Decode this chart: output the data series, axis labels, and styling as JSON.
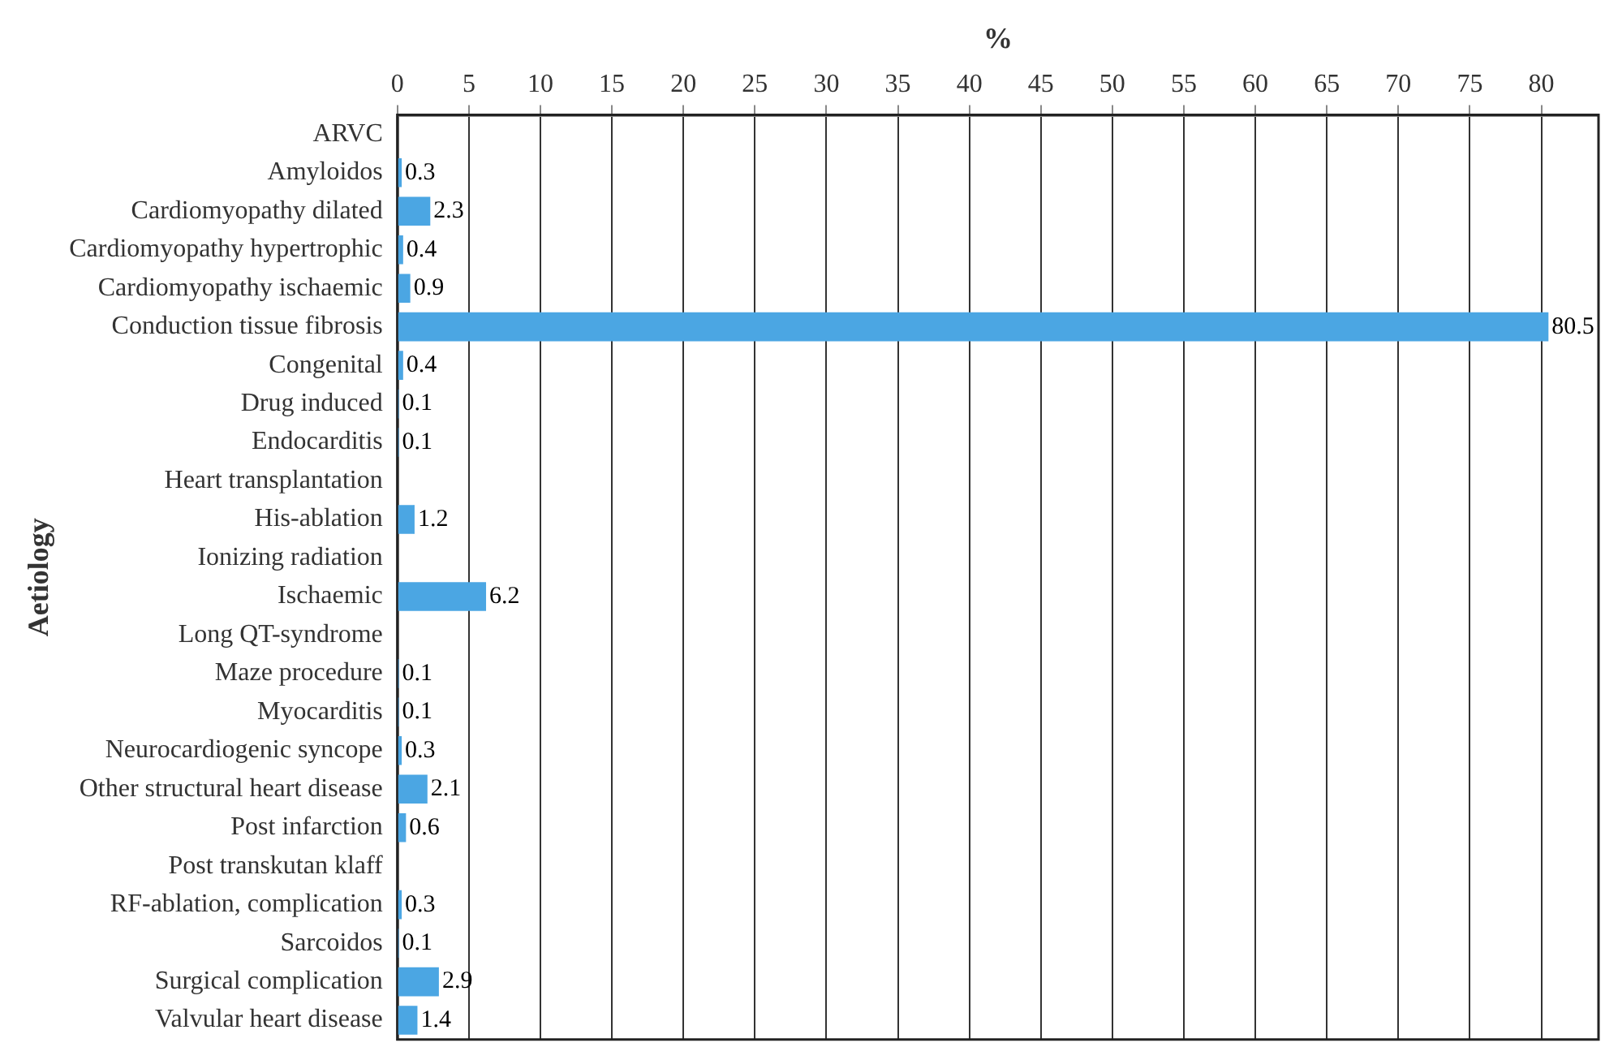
{
  "chart_data": {
    "type": "bar",
    "orientation": "horizontal",
    "xlabel": "%",
    "ylabel": "Aetiology",
    "categories": [
      "ARVC",
      "Amyloidos",
      "Cardiomyopathy dilated",
      "Cardiomyopathy hypertrophic",
      "Cardiomyopathy ischaemic",
      "Conduction tissue fibrosis",
      "Congenital",
      "Drug induced",
      "Endocarditis",
      "Heart transplantation",
      "His-ablation",
      "Ionizing radiation",
      "Ischaemic",
      "Long QT-syndrome",
      "Maze procedure",
      "Myocarditis",
      "Neurocardiogenic syncope",
      "Other structural heart disease",
      "Post infarction",
      "Post transkutan klaff",
      "RF-ablation, complication",
      "Sarcoidos",
      "Surgical complication",
      "Valvular heart disease"
    ],
    "values": [
      null,
      0.3,
      2.3,
      0.4,
      0.9,
      80.5,
      0.4,
      0.1,
      0.1,
      null,
      1.2,
      null,
      6.2,
      null,
      0.1,
      0.1,
      0.3,
      2.1,
      0.6,
      null,
      0.3,
      0.1,
      2.9,
      1.4
    ],
    "color": "#4ba6e3",
    "xlim": [
      0,
      84
    ],
    "xticks": [
      0,
      5,
      10,
      15,
      20,
      25,
      30,
      35,
      40,
      45,
      50,
      55,
      60,
      65,
      70,
      75,
      80
    ],
    "grid": "x",
    "legend": false,
    "data_labels": true
  }
}
